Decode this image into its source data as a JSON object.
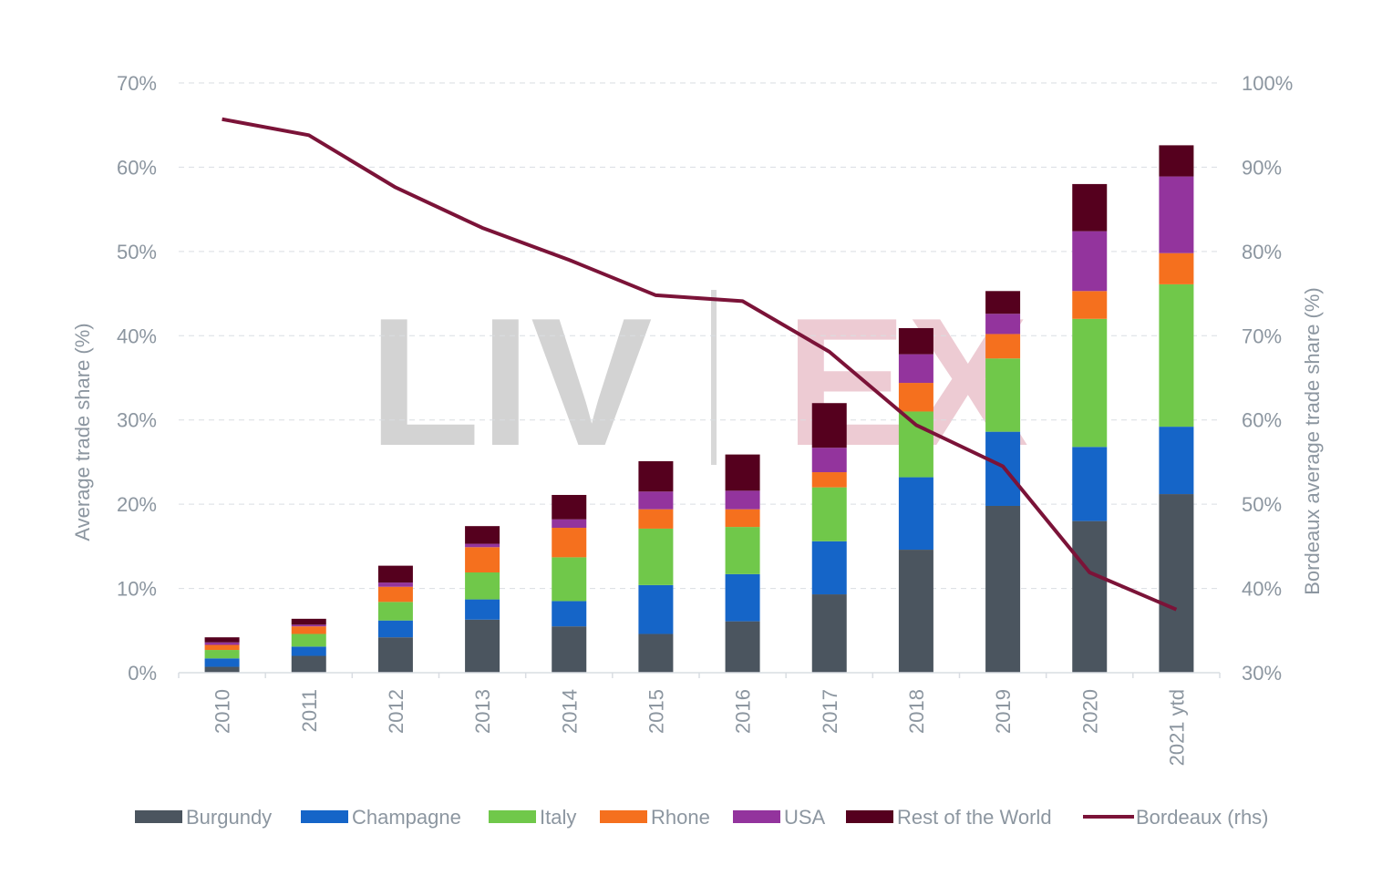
{
  "chart_data": {
    "type": "bar",
    "stacked": true,
    "watermark": "LIV|EX",
    "categories": [
      "2010",
      "2011",
      "2012",
      "2013",
      "2014",
      "2015",
      "2016",
      "2017",
      "2018",
      "2019",
      "2020",
      "2021 ytd"
    ],
    "ylabel": "Average trade share (%)",
    "ylabel_right": "Bordeaux average trade share (%)",
    "ylim": [
      0,
      70
    ],
    "ylim_right": [
      30,
      100
    ],
    "yticks": [
      "0%",
      "10%",
      "20%",
      "30%",
      "40%",
      "50%",
      "60%",
      "70%"
    ],
    "yticks_right": [
      "30%",
      "40%",
      "50%",
      "60%",
      "70%",
      "80%",
      "90%",
      "100%"
    ],
    "grid": true,
    "legend_position": "bottom",
    "series": [
      {
        "name": "Burgundy",
        "color": "#4b555f",
        "values": [
          0.7,
          2.0,
          4.2,
          6.3,
          5.5,
          4.6,
          6.1,
          9.3,
          14.6,
          19.8,
          18.0,
          21.2
        ]
      },
      {
        "name": "Champagne",
        "color": "#1565c8",
        "values": [
          1.0,
          1.1,
          2.0,
          2.4,
          3.0,
          5.8,
          5.6,
          6.3,
          8.6,
          8.8,
          8.8,
          8.0
        ]
      },
      {
        "name": "Italy",
        "color": "#70c84a",
        "values": [
          1.0,
          1.5,
          2.2,
          3.2,
          5.2,
          6.7,
          5.6,
          6.4,
          7.8,
          8.7,
          15.2,
          16.9
        ]
      },
      {
        "name": "Rhone",
        "color": "#f5701e",
        "values": [
          0.6,
          0.9,
          1.8,
          3.0,
          3.5,
          2.3,
          2.1,
          1.8,
          3.4,
          2.9,
          3.3,
          3.7
        ]
      },
      {
        "name": "USA",
        "color": "#93349d",
        "values": [
          0.3,
          0.2,
          0.5,
          0.4,
          1.0,
          2.1,
          2.2,
          2.9,
          3.4,
          2.4,
          7.1,
          9.1
        ]
      },
      {
        "name": "Rest of the World",
        "color": "#55001e",
        "values": [
          0.6,
          0.7,
          2.0,
          2.1,
          2.9,
          3.6,
          4.3,
          5.3,
          3.1,
          2.7,
          5.6,
          3.7
        ]
      },
      {
        "name": "Bordeaux (rhs)",
        "type": "line",
        "axis": "right",
        "color": "#7b1338",
        "values": [
          95.7,
          93.8,
          87.6,
          82.8,
          79.0,
          74.8,
          74.1,
          68.1,
          59.4,
          54.5,
          41.9,
          37.5
        ]
      }
    ]
  }
}
